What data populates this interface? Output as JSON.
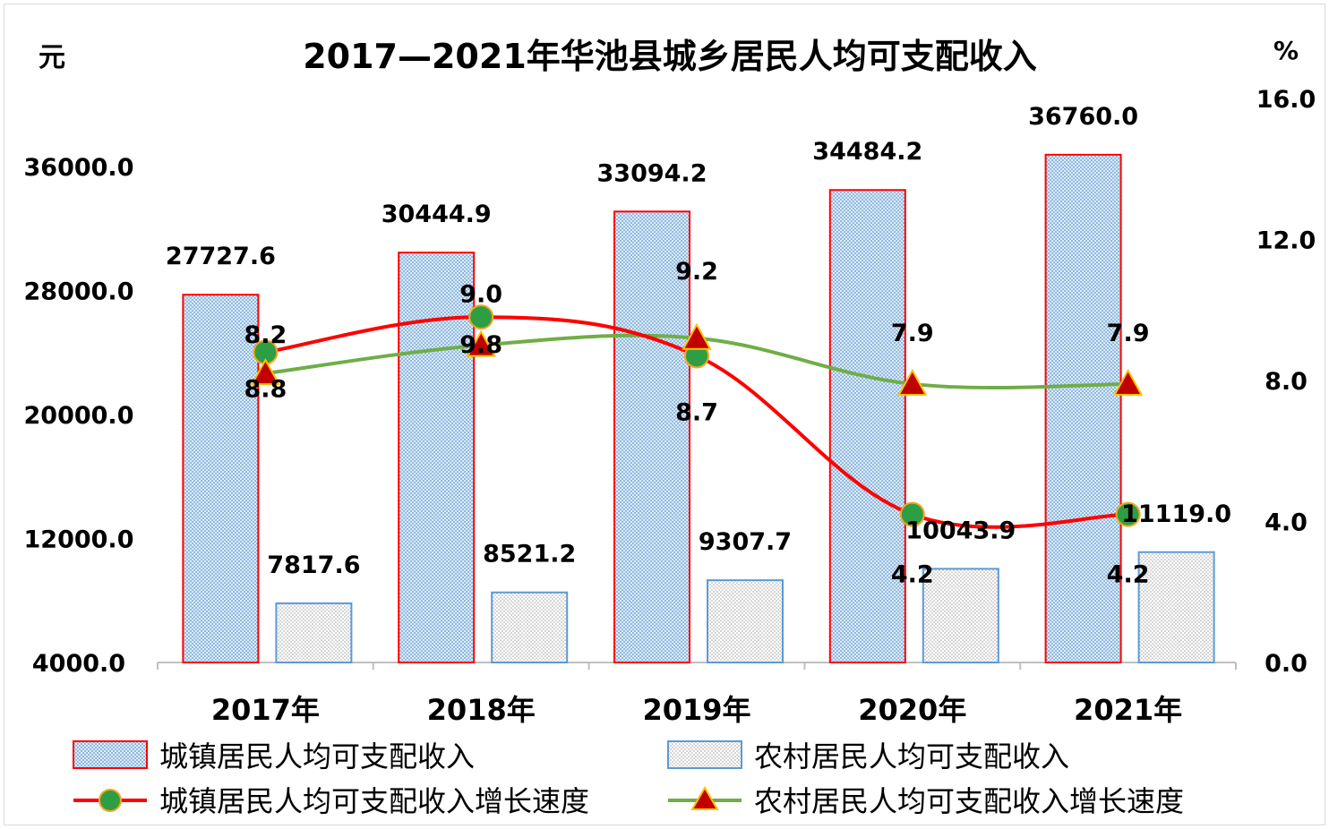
{
  "chart_data": {
    "type": "bar",
    "title": "2017—2021年华池县城乡居民人均可支配收入",
    "y_left_unit": "元",
    "y_right_unit": "%",
    "categories": [
      "2017年",
      "2018年",
      "2019年",
      "2020年",
      "2021年"
    ],
    "y_left_ticks": [
      "36000.0",
      "28000.0",
      "20000.0",
      "12000.0",
      "4000.0"
    ],
    "y_right_ticks": [
      "16.0",
      "12.0",
      "8.0",
      "4.0",
      "0.0"
    ],
    "ylim_left": [
      4000,
      40000
    ],
    "ylim_right": [
      0,
      16
    ],
    "series": [
      {
        "name": "城镇居民人均可支配收入",
        "kind": "bar",
        "axis": "left",
        "values": [
          27727.6,
          30444.9,
          33094.2,
          34484.2,
          36760.0
        ],
        "labels": [
          "27727.6",
          "30444.9",
          "33094.2",
          "34484.2",
          "36760.0"
        ],
        "fill": "#dce9f5",
        "dot": "#5b9bd5",
        "stroke": "#ff0000"
      },
      {
        "name": "农村居民人均可支配收入",
        "kind": "bar",
        "axis": "left",
        "values": [
          7817.6,
          8521.2,
          9307.7,
          10043.9,
          11119.0
        ],
        "labels": [
          "7817.6",
          "8521.2",
          "9307.7",
          "10043.9",
          "11119.0"
        ],
        "fill": "#f2f2f2",
        "dot": "#a6a6a6",
        "stroke": "#5b9bd5"
      },
      {
        "name": "城镇居民人均可支配收入增长速度",
        "kind": "line",
        "axis": "right",
        "values": [
          8.8,
          9.8,
          8.7,
          4.2,
          4.2
        ],
        "labels": [
          "8.8",
          "9.8",
          "8.7",
          "4.2",
          "4.2"
        ],
        "color": "#ff0000",
        "marker": "circle",
        "marker_fill": "#2e9e44"
      },
      {
        "name": "农村居民人均可支配收入增长速度",
        "kind": "line",
        "axis": "right",
        "values": [
          8.2,
          9.0,
          9.2,
          7.9,
          7.9
        ],
        "labels": [
          "8.2",
          "9.0",
          "9.2",
          "7.9",
          "7.9"
        ],
        "color": "#70ad47",
        "marker": "triangle",
        "marker_fill": "#c00000",
        "marker_stroke": "#ffc000"
      }
    ],
    "legend": "bottom",
    "grid": false
  }
}
